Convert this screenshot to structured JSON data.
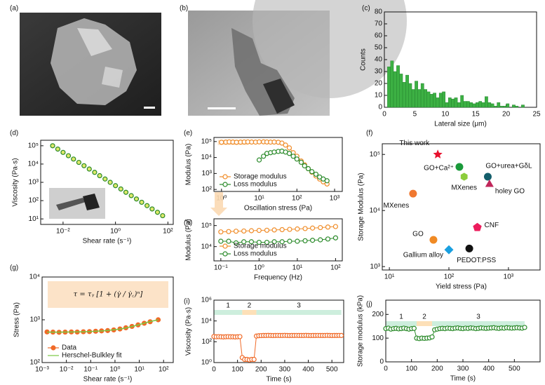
{
  "chart_data": [
    {
      "type": "image",
      "panel_label": "(a)"
    },
    {
      "type": "image",
      "panel_label": "(b)"
    },
    {
      "type": "histogram",
      "panel_label": "(c)",
      "xlabel": "Lateral size (μm)",
      "ylabel": "Counts",
      "xlim": [
        0,
        25
      ],
      "ylim": [
        0,
        80
      ],
      "xticks": [
        0,
        5,
        10,
        15,
        20,
        25
      ],
      "yticks": [
        0,
        10,
        20,
        30,
        40,
        50,
        60,
        70,
        80
      ],
      "color": "#3cb043",
      "bins": [
        0.5,
        1,
        1.5,
        2,
        2.5,
        3,
        3.5,
        4,
        4.5,
        5,
        5.5,
        6,
        6.5,
        7,
        7.5,
        8,
        8.5,
        9,
        9.5,
        10,
        10.5,
        11,
        11.5,
        12,
        12.5,
        13,
        13.5,
        14,
        14.5,
        15,
        15.5,
        16,
        16.5,
        17,
        17.5,
        18,
        18.5,
        19,
        19.5,
        20,
        20.5,
        21,
        21.5,
        22,
        22.5,
        23
      ],
      "values": [
        34,
        39,
        30,
        35,
        28,
        21,
        27,
        20,
        15,
        22,
        15,
        20,
        15,
        13,
        11,
        12,
        8,
        12,
        13,
        4,
        8,
        7,
        8,
        4,
        10,
        5,
        5,
        4,
        3,
        4,
        5,
        4,
        9,
        4,
        3,
        1,
        4,
        1,
        1,
        3,
        0,
        2,
        1,
        0,
        2
      ]
    },
    {
      "type": "scatter",
      "panel_label": "(d)",
      "xlabel": "Shear rate (s⁻¹)",
      "ylabel": "Viscosity (Pa·s)",
      "xlog": true,
      "ylog": true,
      "xlim": [
        0.0014,
        160
      ],
      "ylim": [
        5,
        200000
      ],
      "xticks": [
        {
          "value": 0.01,
          "label": "10⁻²"
        },
        {
          "value": 1,
          "label": "10⁰"
        },
        {
          "value": 100,
          "label": "10²"
        }
      ],
      "yticks": [
        {
          "value": 10,
          "label": "10¹"
        },
        {
          "value": 100,
          "label": "10²"
        },
        {
          "value": 1000,
          "label": "10³"
        },
        {
          "value": 10000,
          "label": "10⁴"
        },
        {
          "value": 100000,
          "label": "10⁵"
        }
      ],
      "color": "#2a8a2a",
      "face": "#dfe86a",
      "marker": "ring",
      "x": [
        0.004,
        0.0063,
        0.01,
        0.016,
        0.025,
        0.04,
        0.063,
        0.1,
        0.16,
        0.25,
        0.4,
        0.63,
        1,
        1.6,
        2.5,
        4,
        6.3,
        10,
        16,
        25,
        40,
        63
      ],
      "values": [
        100000,
        65800,
        43300,
        28500,
        18700,
        12300,
        8100,
        5340,
        3510,
        2310,
        1520,
        1000,
        658,
        433,
        285,
        187,
        123,
        81,
        53,
        35,
        23,
        15
      ]
    },
    {
      "type": "scatter",
      "panel_label": "(e)",
      "xlabel": "Oscillation stress (Pa)",
      "ylabel": "Modulus (Pa)",
      "xlog": true,
      "ylog": true,
      "xlim": [
        0.63,
        1600
      ],
      "ylim": [
        75,
        180000
      ],
      "legend": "lower left",
      "xticks": [
        {
          "value": 1,
          "label": "10⁰"
        },
        {
          "value": 10,
          "label": "10¹"
        },
        {
          "value": 100,
          "label": "10²"
        },
        {
          "value": 1000,
          "label": "10³"
        }
      ],
      "yticks": [
        {
          "value": 100,
          "label": "10²"
        },
        {
          "value": 1000,
          "label": "10³"
        },
        {
          "value": 10000,
          "label": "10⁴"
        },
        {
          "value": 100000,
          "label": "10⁵"
        }
      ],
      "series": [
        {
          "name": "Storage modulus",
          "color": "#f08c28",
          "marker": "ring",
          "line": true,
          "x": [
            1,
            1.3,
            1.6,
            2,
            2.5,
            3.2,
            4,
            5,
            6.3,
            8,
            10,
            13,
            16,
            20,
            25,
            32,
            40,
            50,
            63,
            80,
            100,
            130,
            160,
            200,
            250,
            320,
            400,
            500,
            630
          ],
          "values": [
            90000,
            92000,
            95000,
            93000,
            90000,
            92000,
            94000,
            95000,
            93000,
            92000,
            95000,
            96000,
            94000,
            92000,
            93000,
            90000,
            80000,
            60000,
            40000,
            20000,
            12000,
            6000,
            3500,
            2000,
            1200,
            700,
            450,
            300,
            220
          ]
        },
        {
          "name": "Loss modulus",
          "color": "#2a8a2a",
          "marker": "ring",
          "line": true,
          "x": [
            10,
            13,
            16,
            20,
            25,
            32,
            40,
            50,
            63,
            80,
            100,
            130,
            160,
            200,
            250,
            320,
            400,
            500,
            630
          ],
          "values": [
            7000,
            12000,
            18000,
            20000,
            22000,
            24000,
            25000,
            22000,
            18000,
            12000,
            8000,
            5000,
            3000,
            2000,
            1300,
            900,
            600,
            450,
            350
          ]
        }
      ]
    },
    {
      "type": "scatter",
      "panel_label": "(f)",
      "xlabel": "Yield stress (Pa)",
      "ylabel": "Storage Modulus (Pa)",
      "xlog": true,
      "ylog": true,
      "xlim": [
        7.6,
        3400
      ],
      "ylim": [
        870,
        155000
      ],
      "point_labels": true,
      "xticks": [
        {
          "value": 10,
          "label": "10¹"
        },
        {
          "value": 100,
          "label": "10²"
        },
        {
          "value": 1000,
          "label": "10³"
        }
      ],
      "yticks": [
        {
          "value": 1000,
          "label": "10³"
        },
        {
          "value": 10000,
          "label": "10⁴"
        },
        {
          "value": 100000,
          "label": "10⁵"
        }
      ],
      "series": [
        {
          "name": "This work",
          "color": "#e8112d",
          "marker": "star",
          "x": [
            65
          ],
          "values": [
            100000
          ]
        },
        {
          "name": "GO+Ca²⁺",
          "color": "#1a9a3a",
          "marker": "dot",
          "x": [
            150
          ],
          "values": [
            60000
          ]
        },
        {
          "name": "MXenes",
          "color": "#8ccd3c",
          "marker": "hexagon",
          "x": [
            180
          ],
          "values": [
            40000
          ]
        },
        {
          "name": "GO+urea+GδL",
          "color": "#135e6b",
          "marker": "dot",
          "x": [
            450
          ],
          "values": [
            40000
          ]
        },
        {
          "name": "holey GO",
          "color": "#c0265a",
          "marker": "triangle",
          "x": [
            480
          ],
          "values": [
            30000
          ]
        },
        {
          "name": "MXenes",
          "color": "#f07830",
          "marker": "dot",
          "x": [
            25
          ],
          "values": [
            20000
          ]
        },
        {
          "name": "CNF",
          "color": "#ec1c5c",
          "marker": "pentagon",
          "x": [
            300
          ],
          "values": [
            5000
          ]
        },
        {
          "name": "GO",
          "color": "#f08a24",
          "marker": "dot",
          "x": [
            55
          ],
          "values": [
            3000
          ]
        },
        {
          "name": "Gallium alloy",
          "color": "#1aa0e0",
          "marker": "diamond",
          "x": [
            100
          ],
          "values": [
            2000
          ]
        },
        {
          "name": "PEDOT:PSS",
          "color": "#111111",
          "marker": "dot",
          "x": [
            220
          ],
          "values": [
            2100
          ]
        }
      ]
    },
    {
      "type": "scatter",
      "panel_label": "(g)",
      "xlabel": "Shear rate (s⁻¹)",
      "ylabel": "Stress (Pa)",
      "xlog": true,
      "ylog": true,
      "xlim": [
        0.001,
        250
      ],
      "ylim": [
        100,
        10000
      ],
      "legend": "lower left",
      "equation": "τ = τᵧ [1 + (γ̇ / γ̇꜀)ⁿ]",
      "xticks": [
        {
          "value": 0.001,
          "label": "10⁻³"
        },
        {
          "value": 0.01,
          "label": "10⁻²"
        },
        {
          "value": 0.1,
          "label": "10⁻¹"
        },
        {
          "value": 1,
          "label": "10⁰"
        },
        {
          "value": 10,
          "label": "10¹"
        },
        {
          "value": 100,
          "label": "10²"
        }
      ],
      "yticks": [
        {
          "value": 100,
          "label": "10²"
        },
        {
          "value": 1000,
          "label": "10³"
        },
        {
          "value": 10000,
          "label": "10⁴"
        }
      ],
      "x": [
        0.0016,
        0.0028,
        0.005,
        0.0089,
        0.016,
        0.028,
        0.05,
        0.089,
        0.16,
        0.28,
        0.5,
        0.89,
        1.6,
        2.8,
        5,
        8.9,
        16,
        28,
        60
      ],
      "series": [
        {
          "name": "Data",
          "color": "#f06a28",
          "marker": "dot",
          "values": [
            520,
            515,
            510,
            515,
            520,
            518,
            525,
            530,
            540,
            550,
            560,
            580,
            610,
            650,
            700,
            760,
            830,
            900,
            1000
          ]
        },
        {
          "name": "Herschel-Bulkley fit",
          "color": "#7ac943",
          "marker": "none",
          "line": true,
          "values": [
            515,
            515,
            515,
            516,
            518,
            520,
            524,
            530,
            538,
            548,
            562,
            582,
            608,
            645,
            695,
            755,
            830,
            910,
            1000
          ]
        }
      ]
    },
    {
      "type": "scatter",
      "panel_label": "(h)",
      "xlabel": "Frequency (Hz)",
      "ylabel": "Modulus (Pa)",
      "xlog": true,
      "ylog": true,
      "xlim": [
        0.066,
        150
      ],
      "ylim": [
        2100,
        210000
      ],
      "legend": "lower left",
      "xticks": [
        {
          "value": 0.1,
          "label": "10⁻¹"
        },
        {
          "value": 1,
          "label": "10⁰"
        },
        {
          "value": 10,
          "label": "10¹"
        },
        {
          "value": 100,
          "label": "10²"
        }
      ],
      "yticks": [
        {
          "value": 10000,
          "label": "10⁴"
        },
        {
          "value": 100000,
          "label": "10⁵"
        }
      ],
      "x": [
        0.1,
        0.16,
        0.25,
        0.4,
        0.63,
        1,
        1.6,
        2.5,
        4,
        6.3,
        10,
        16,
        25,
        40,
        63,
        100
      ],
      "series": [
        {
          "name": "Storage modulus",
          "color": "#f08c28",
          "marker": "ring",
          "line": true,
          "values": [
            50000,
            52000,
            54000,
            55000,
            57000,
            59000,
            60000,
            62000,
            64000,
            66000,
            69000,
            72000,
            76000,
            80000,
            85000,
            90000
          ]
        },
        {
          "name": "Loss modulus",
          "color": "#2a8a2a",
          "marker": "ring",
          "line": true,
          "values": [
            18000,
            18000,
            15000,
            17000,
            17000,
            16000,
            16000,
            17000,
            17000,
            18000,
            18000,
            19000,
            20000,
            21000,
            23000,
            26000
          ]
        }
      ]
    },
    {
      "type": "scatter",
      "panel_label": "(i)",
      "xlabel": "Time (s)",
      "ylabel": "Viscosity (Pa·s)",
      "ylog": true,
      "xlim": [
        0,
        550
      ],
      "ylim": [
        1,
        1000000
      ],
      "xticks": [
        0,
        100,
        200,
        300,
        400,
        500
      ],
      "yticks": [
        {
          "value": 1,
          "label": "10⁰"
        },
        {
          "value": 100,
          "label": "10²"
        },
        {
          "value": 10000,
          "label": "10⁴"
        },
        {
          "value": 1000000,
          "label": "10⁶"
        }
      ],
      "regions": [
        {
          "label": "1",
          "start": 0,
          "end": 120,
          "color": "#cdeedd",
          "text_color": "#1f9a5a"
        },
        {
          "label": "2",
          "start": 120,
          "end": 180,
          "color": "#fde0b8",
          "text_color": "#f08c28"
        },
        {
          "label": "3",
          "start": 180,
          "end": 540,
          "color": "#cdeedd",
          "text_color": "#1f9a5a"
        }
      ],
      "color": "#f06a28",
      "face": "#ffffff",
      "marker": "ring",
      "line": true,
      "x": [
        0,
        10,
        20,
        30,
        40,
        50,
        60,
        70,
        80,
        90,
        100,
        110,
        120,
        130,
        140,
        150,
        160,
        170,
        180,
        190,
        200,
        210,
        220,
        230,
        240,
        250,
        260,
        270,
        280,
        290,
        300,
        310,
        320,
        330,
        340,
        350,
        360,
        370,
        380,
        390,
        400,
        410,
        420,
        430,
        440,
        450,
        460,
        470,
        480,
        490,
        500,
        510,
        520,
        530,
        540
      ],
      "values": [
        320,
        300,
        310,
        300,
        290,
        300,
        310,
        300,
        300,
        290,
        300,
        310,
        3,
        2,
        2,
        1.8,
        2,
        2,
        350,
        380,
        390,
        400,
        400,
        410,
        400,
        395,
        400,
        405,
        400,
        400,
        410,
        400,
        395,
        400,
        400,
        405,
        400,
        400,
        400,
        410,
        400,
        395,
        400,
        400,
        405,
        400,
        400,
        400,
        410,
        400,
        395,
        400,
        400,
        405,
        400
      ]
    },
    {
      "type": "scatter",
      "panel_label": "(j)",
      "xlabel": "Time (s)",
      "ylabel": "Storage modulus (kPa)",
      "xlim": [
        0,
        600
      ],
      "ylim": [
        0,
        260
      ],
      "xticks": [
        0,
        100,
        200,
        300,
        400,
        500
      ],
      "yticks": [
        0,
        100,
        200
      ],
      "regions": [
        {
          "label": "1",
          "start": 0,
          "end": 120,
          "color": "#cdeedd",
          "text_color": "#1f9a5a"
        },
        {
          "label": "2",
          "start": 120,
          "end": 180,
          "color": "#fde0b8",
          "text_color": "#f08c28"
        },
        {
          "label": "3",
          "start": 180,
          "end": 540,
          "color": "#cdeedd",
          "text_color": "#1f9a5a"
        }
      ],
      "color": "#2a8a2a",
      "face": "#ffffff",
      "marker": "ring",
      "line": true,
      "x": [
        0,
        10,
        20,
        30,
        40,
        50,
        60,
        70,
        80,
        90,
        100,
        110,
        120,
        130,
        140,
        150,
        160,
        170,
        180,
        190,
        200,
        210,
        220,
        230,
        240,
        250,
        260,
        270,
        280,
        290,
        300,
        310,
        320,
        330,
        340,
        350,
        360,
        370,
        380,
        390,
        400,
        410,
        420,
        430,
        440,
        450,
        460,
        470,
        480,
        490,
        500,
        510,
        520,
        530,
        540
      ],
      "values": [
        140,
        142,
        138,
        140,
        141,
        139,
        140,
        142,
        140,
        138,
        140,
        141,
        100,
        98,
        100,
        99,
        100,
        101,
        105,
        135,
        138,
        140,
        141,
        140,
        142,
        141,
        140,
        142,
        143,
        141,
        140,
        142,
        141,
        143,
        142,
        140,
        141,
        143,
        142,
        141,
        142,
        143,
        144,
        142,
        141,
        143,
        142,
        144,
        143,
        142,
        143,
        144,
        143,
        142,
        145
      ]
    }
  ]
}
